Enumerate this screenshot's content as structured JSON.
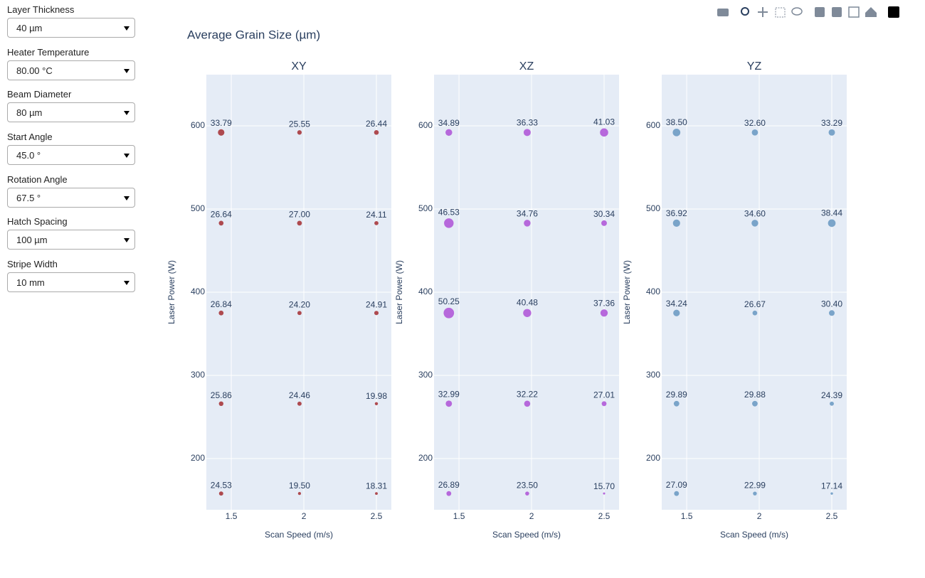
{
  "controls": [
    {
      "label": "Layer Thickness",
      "value": "40 µm"
    },
    {
      "label": "Heater Temperature",
      "value": "80.00 °C"
    },
    {
      "label": "Beam Diameter",
      "value": "80 µm"
    },
    {
      "label": "Start Angle",
      "value": "45.0 °"
    },
    {
      "label": "Rotation Angle",
      "value": "67.5 °"
    },
    {
      "label": "Hatch Spacing",
      "value": "100 µm"
    },
    {
      "label": "Stripe Width",
      "value": "10 mm"
    }
  ],
  "title": "Average Grain Size (µm)",
  "chart_data": [
    {
      "type": "scatter",
      "title": "XY",
      "xlabel": "Scan Speed (m/s)",
      "ylabel": "Laser Power (W)",
      "color": "#a7383d",
      "x": [
        1.43,
        1.97,
        2.5,
        1.43,
        1.97,
        2.5,
        1.43,
        1.97,
        2.5,
        1.43,
        1.97,
        2.5,
        1.43,
        1.97,
        2.5
      ],
      "y": [
        592,
        592,
        592,
        483,
        483,
        483,
        375,
        375,
        375,
        266,
        266,
        266,
        158,
        158,
        158
      ],
      "sizes": [
        33.79,
        25.55,
        26.44,
        26.64,
        27.0,
        24.11,
        26.84,
        24.2,
        24.91,
        25.86,
        24.46,
        19.98,
        24.53,
        19.5,
        18.31
      ],
      "value_labels": [
        "33.79",
        "25.55",
        "26.44",
        "26.64",
        "27.00",
        "24.11",
        "26.84",
        "24.20",
        "24.91",
        "25.86",
        "24.46",
        "19.98",
        "24.53",
        "19.50",
        "18.31"
      ],
      "xlim": [
        1.328,
        2.603
      ],
      "ylim": [
        138.5,
        661.5
      ],
      "xticks": [
        1.5,
        2,
        2.5
      ],
      "yticks": [
        200,
        300,
        400,
        500,
        600
      ]
    },
    {
      "type": "scatter",
      "title": "XZ",
      "xlabel": "Scan Speed (m/s)",
      "ylabel": "Laser Power (W)",
      "color": "#b05ad8",
      "x": [
        1.43,
        1.97,
        2.5,
        1.43,
        1.97,
        2.5,
        1.43,
        1.97,
        2.5,
        1.43,
        1.97,
        2.5,
        1.43,
        1.97,
        2.5
      ],
      "y": [
        592,
        592,
        592,
        483,
        483,
        483,
        375,
        375,
        375,
        266,
        266,
        266,
        158,
        158,
        158
      ],
      "sizes": [
        34.89,
        36.33,
        41.03,
        46.53,
        34.76,
        30.34,
        50.25,
        40.48,
        37.36,
        32.99,
        32.22,
        27.01,
        26.89,
        23.5,
        15.7
      ],
      "value_labels": [
        "34.89",
        "36.33",
        "41.03",
        "46.53",
        "34.76",
        "30.34",
        "50.25",
        "40.48",
        "37.36",
        "32.99",
        "32.22",
        "27.01",
        "26.89",
        "23.50",
        "15.70"
      ],
      "xlim": [
        1.328,
        2.603
      ],
      "ylim": [
        138.5,
        661.5
      ],
      "xticks": [
        1.5,
        2,
        2.5
      ],
      "yticks": [
        200,
        300,
        400,
        500,
        600
      ]
    },
    {
      "type": "scatter",
      "title": "YZ",
      "xlabel": "Scan Speed (m/s)",
      "ylabel": "Laser Power (W)",
      "color": "#6e9cc4",
      "x": [
        1.43,
        1.97,
        2.5,
        1.43,
        1.97,
        2.5,
        1.43,
        1.97,
        2.5,
        1.43,
        1.97,
        2.5,
        1.43,
        1.97,
        2.5
      ],
      "y": [
        592,
        592,
        592,
        483,
        483,
        483,
        375,
        375,
        375,
        266,
        266,
        266,
        158,
        158,
        158
      ],
      "sizes": [
        38.5,
        32.6,
        33.29,
        36.92,
        34.6,
        38.44,
        34.24,
        26.67,
        30.4,
        29.89,
        29.88,
        24.39,
        27.09,
        22.99,
        17.14
      ],
      "value_labels": [
        "38.50",
        "32.60",
        "33.29",
        "36.92",
        "34.60",
        "38.44",
        "34.24",
        "26.67",
        "30.40",
        "29.89",
        "29.88",
        "24.39",
        "27.09",
        "22.99",
        "17.14"
      ],
      "xlim": [
        1.328,
        2.603
      ],
      "ylim": [
        138.5,
        661.5
      ],
      "xticks": [
        1.5,
        2,
        2.5
      ],
      "yticks": [
        200,
        300,
        400,
        500,
        600
      ]
    }
  ]
}
